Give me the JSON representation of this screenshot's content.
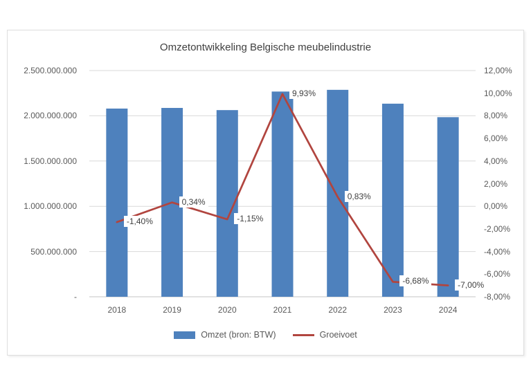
{
  "title": "Omzetontwikkeling Belgische meubelindustrie",
  "chart_data": {
    "type": "combo-bar-line",
    "categories": [
      "2018",
      "2019",
      "2020",
      "2021",
      "2022",
      "2023",
      "2024"
    ],
    "series": [
      {
        "name": "Omzet (bron: BTW)",
        "type": "bar",
        "axis": "left",
        "color": "#4e81bd",
        "values": [
          2080000000,
          2087000000,
          2063000000,
          2268000000,
          2287000000,
          2134000000,
          1985000000
        ]
      },
      {
        "name": "Groeivoet",
        "type": "line",
        "axis": "right",
        "color": "#b1453f",
        "values": [
          -1.4,
          0.34,
          -1.15,
          9.93,
          0.83,
          -6.68,
          -7.0
        ],
        "data_labels": [
          "-1,40%",
          "0,34%",
          "-1,15%",
          "9,93%",
          "0,83%",
          "-6,68%",
          "-7,00%"
        ]
      }
    ],
    "left_axis": {
      "min": 0,
      "max": 2500000000,
      "ticks": [
        0,
        500000000,
        1000000000,
        1500000000,
        2000000000,
        2500000000
      ],
      "tick_labels": [
        "-",
        "500.000.000",
        "1.000.000.000",
        "1.500.000.000",
        "2.000.000.000",
        "2.500.000.000"
      ]
    },
    "right_axis": {
      "min": -8,
      "max": 12,
      "ticks": [
        -8,
        -6,
        -4,
        -2,
        0,
        2,
        4,
        6,
        8,
        10,
        12
      ],
      "tick_labels": [
        "-8,00%",
        "-6,00%",
        "-4,00%",
        "-2,00%",
        "0,00%",
        "2,00%",
        "4,00%",
        "6,00%",
        "8,00%",
        "10,00%",
        "12,00%"
      ]
    },
    "grid": true,
    "legend_position": "bottom"
  },
  "legend": {
    "items": [
      {
        "label": "Omzet (bron: BTW)",
        "marker": "rect",
        "color": "#4e81bd"
      },
      {
        "label": "Groeivoet",
        "marker": "line",
        "color": "#b1453f"
      }
    ]
  },
  "colors": {
    "bar": "#4e81bd",
    "line": "#b1453f",
    "gridline": "#d9d9d9",
    "axis_line": "#c6c6c6",
    "axis_text": "#595959",
    "title_text": "#404040",
    "label_bg": "#ffffff"
  }
}
